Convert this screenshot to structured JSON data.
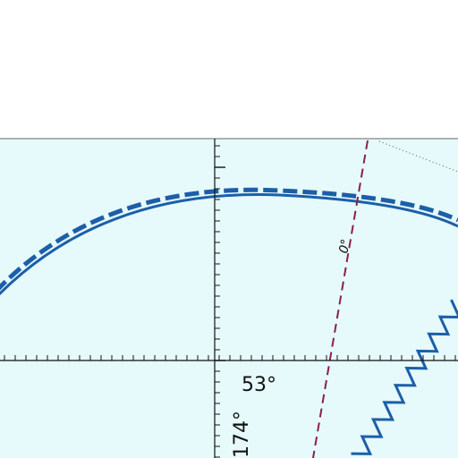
{
  "map": {
    "colors": {
      "water": "#e6fafc",
      "frame": "#666666",
      "axis": "#111111",
      "boundary": "#1c5fa8",
      "isogonic": "#8a1f4e",
      "zigzag": "#1c5fa8",
      "dotted": "#555555"
    },
    "labels": {
      "latitude_label": "53°",
      "longitude_label": "174°",
      "isogonic_label": "0°"
    }
  }
}
